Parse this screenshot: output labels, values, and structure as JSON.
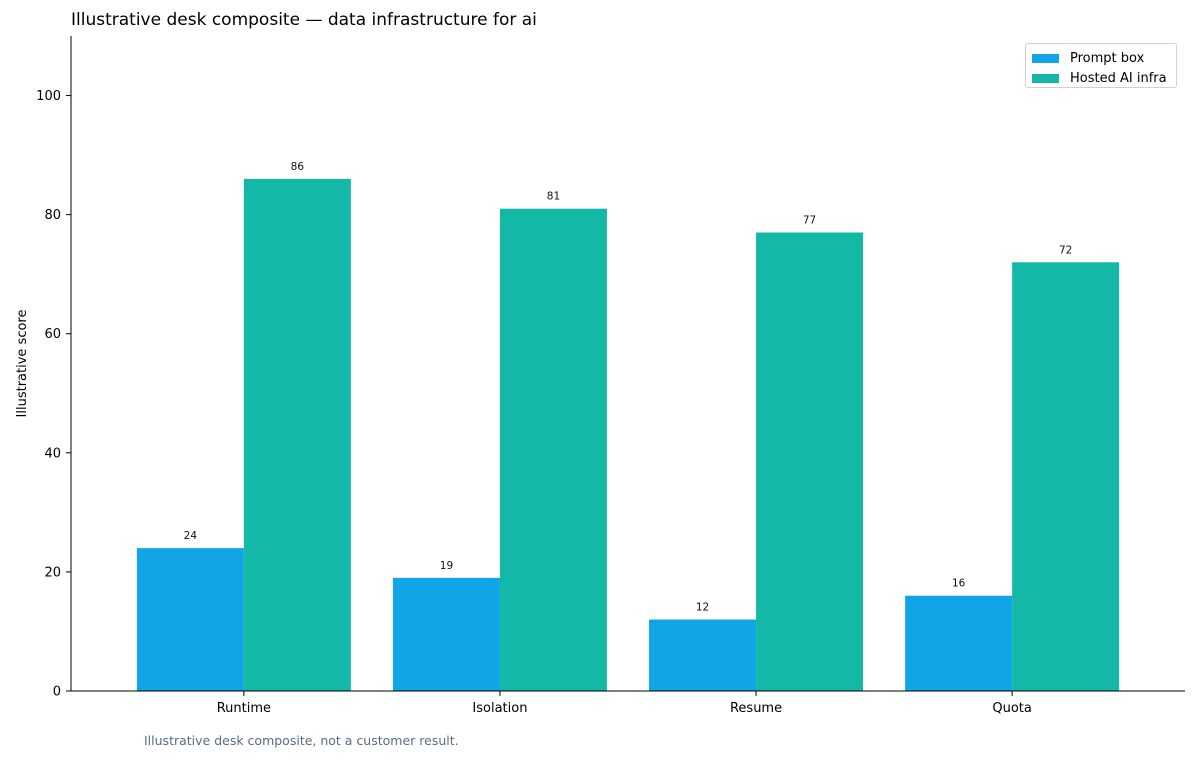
{
  "chart_data": {
    "type": "bar",
    "title": "Illustrative desk composite — data infrastructure for ai",
    "xlabel": "",
    "ylabel": "Illustrative score",
    "ylim": [
      0,
      110
    ],
    "yticks": [
      0,
      20,
      40,
      60,
      80,
      100
    ],
    "categories": [
      "Runtime",
      "Isolation",
      "Resume",
      "Quota"
    ],
    "series": [
      {
        "name": "Prompt box",
        "color": "#11a5e8",
        "values": [
          24,
          19,
          12,
          16
        ]
      },
      {
        "name": "Hosted AI infra",
        "color": "#14b8a6",
        "values": [
          86,
          81,
          77,
          72
        ]
      }
    ],
    "legend": "top-right",
    "grid": false,
    "footnote": "Illustrative desk composite, not a customer result."
  }
}
